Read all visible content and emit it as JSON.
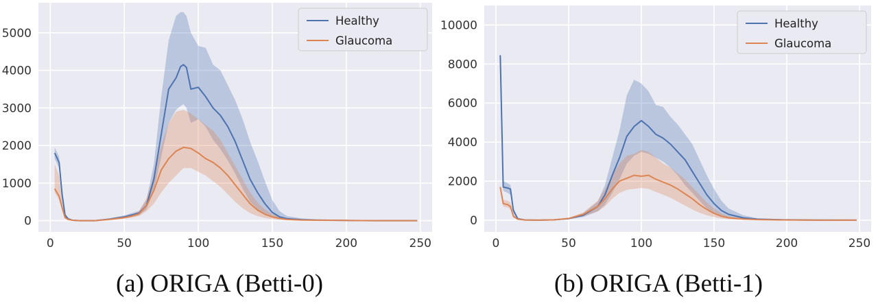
{
  "colors": {
    "healthy": "#4c72b0",
    "glaucoma": "#dd8452",
    "background": "#eaeaf2",
    "grid": "#ffffff"
  },
  "chart_data": [
    {
      "type": "line",
      "caption": "(a) ORIGA (Betti-0)",
      "xlim": [
        -8,
        258
      ],
      "ylim": [
        -300,
        5800
      ],
      "xticks": [
        0,
        50,
        100,
        150,
        200,
        250
      ],
      "yticks": [
        0,
        1000,
        2000,
        3000,
        4000,
        5000
      ],
      "legend_position": "upper right",
      "grid": true,
      "series": [
        {
          "name": "Healthy",
          "color": "#4c72b0",
          "x": [
            3,
            6,
            8,
            10,
            12,
            15,
            20,
            30,
            40,
            50,
            55,
            60,
            65,
            70,
            75,
            80,
            85,
            88,
            90,
            92,
            95,
            100,
            105,
            110,
            115,
            120,
            125,
            130,
            135,
            140,
            145,
            150,
            155,
            160,
            170,
            180,
            200,
            220,
            248
          ],
          "y": [
            1800,
            1550,
            700,
            150,
            50,
            10,
            0,
            0,
            40,
            100,
            150,
            200,
            400,
            1100,
            2300,
            3500,
            3800,
            4100,
            4150,
            4080,
            3500,
            3550,
            3300,
            3000,
            2800,
            2500,
            2100,
            1600,
            1100,
            750,
            450,
            220,
            100,
            50,
            25,
            15,
            5,
            0,
            0
          ],
          "lower": [
            1650,
            1400,
            550,
            100,
            30,
            5,
            0,
            0,
            20,
            60,
            100,
            150,
            300,
            800,
            1700,
            2600,
            2950,
            3050,
            3100,
            3000,
            2600,
            2700,
            2500,
            2150,
            1900,
            1600,
            1250,
            850,
            500,
            300,
            150,
            80,
            40,
            20,
            10,
            5,
            0,
            0,
            0
          ],
          "upper": [
            1950,
            1700,
            850,
            200,
            70,
            15,
            0,
            0,
            60,
            140,
            200,
            260,
            550,
            1500,
            3300,
            4800,
            5450,
            5550,
            5550,
            5450,
            5000,
            4650,
            4600,
            4150,
            4000,
            3600,
            3200,
            2700,
            2100,
            1600,
            1050,
            550,
            250,
            120,
            60,
            30,
            10,
            0,
            0
          ]
        },
        {
          "name": "Glaucoma",
          "color": "#dd8452",
          "x": [
            3,
            6,
            8,
            10,
            12,
            15,
            20,
            30,
            40,
            50,
            55,
            60,
            65,
            70,
            75,
            80,
            85,
            90,
            95,
            100,
            105,
            110,
            115,
            120,
            125,
            130,
            135,
            140,
            145,
            150,
            155,
            160,
            170,
            180,
            200,
            220,
            248
          ],
          "y": [
            850,
            650,
            350,
            80,
            30,
            10,
            0,
            0,
            30,
            80,
            120,
            180,
            400,
            800,
            1350,
            1650,
            1850,
            1950,
            1920,
            1800,
            1650,
            1550,
            1400,
            1200,
            950,
            700,
            450,
            280,
            170,
            100,
            60,
            30,
            15,
            10,
            5,
            0,
            0
          ],
          "lower": [
            750,
            550,
            280,
            60,
            20,
            5,
            0,
            0,
            20,
            50,
            80,
            120,
            250,
            450,
            750,
            1000,
            1200,
            1400,
            1400,
            1300,
            1200,
            1050,
            900,
            700,
            500,
            330,
            200,
            120,
            70,
            40,
            20,
            10,
            5,
            0,
            0,
            0,
            0
          ],
          "upper": [
            1500,
            1200,
            500,
            110,
            40,
            15,
            0,
            0,
            40,
            110,
            160,
            250,
            600,
            1200,
            2000,
            2600,
            2900,
            2950,
            2850,
            2700,
            2550,
            2400,
            2150,
            1800,
            1450,
            1100,
            750,
            480,
            300,
            180,
            110,
            60,
            30,
            15,
            5,
            0,
            0
          ]
        }
      ]
    },
    {
      "type": "line",
      "caption": "(b) ORIGA (Betti-1)",
      "xlim": [
        -8,
        258
      ],
      "ylim": [
        -600,
        11000
      ],
      "xticks": [
        0,
        50,
        100,
        150,
        200,
        250
      ],
      "yticks": [
        0,
        2000,
        4000,
        6000,
        8000,
        10000
      ],
      "legend_position": "upper right",
      "grid": true,
      "series": [
        {
          "name": "Healthy",
          "color": "#4c72b0",
          "x": [
            3,
            5,
            8,
            10,
            12,
            15,
            20,
            30,
            40,
            50,
            60,
            70,
            75,
            80,
            85,
            90,
            95,
            100,
            105,
            110,
            115,
            120,
            125,
            130,
            135,
            140,
            145,
            150,
            155,
            160,
            170,
            180,
            200,
            220,
            248
          ],
          "y": [
            8450,
            1700,
            1650,
            1600,
            500,
            80,
            10,
            0,
            20,
            80,
            250,
            700,
            1300,
            2300,
            3200,
            4300,
            4800,
            5100,
            4800,
            4400,
            4200,
            3900,
            3500,
            3100,
            2500,
            1900,
            1300,
            850,
            500,
            300,
            120,
            50,
            20,
            5,
            0
          ],
          "lower": [
            8300,
            1500,
            1400,
            1300,
            350,
            50,
            5,
            0,
            10,
            50,
            160,
            450,
            800,
            1400,
            2100,
            2900,
            3300,
            3500,
            3400,
            3200,
            3000,
            2700,
            2300,
            1800,
            1400,
            1000,
            600,
            350,
            200,
            100,
            40,
            15,
            5,
            0,
            0
          ],
          "upper": [
            8600,
            2000,
            1900,
            1800,
            650,
            110,
            15,
            0,
            30,
            110,
            350,
            950,
            1800,
            3200,
            4600,
            6400,
            7200,
            7000,
            6600,
            5900,
            5800,
            5300,
            4900,
            4400,
            3900,
            3100,
            2300,
            1600,
            1000,
            600,
            250,
            100,
            40,
            10,
            0
          ]
        },
        {
          "name": "Glaucoma",
          "color": "#dd8452",
          "x": [
            3,
            5,
            8,
            10,
            12,
            15,
            20,
            30,
            40,
            50,
            60,
            70,
            75,
            80,
            85,
            90,
            95,
            100,
            105,
            110,
            115,
            120,
            125,
            130,
            135,
            140,
            145,
            150,
            155,
            160,
            170,
            180,
            200,
            220,
            248
          ],
          "y": [
            1700,
            850,
            800,
            700,
            200,
            50,
            10,
            0,
            20,
            90,
            300,
            700,
            1100,
            1600,
            2000,
            2150,
            2300,
            2250,
            2300,
            2100,
            1950,
            1800,
            1600,
            1350,
            1100,
            800,
            550,
            350,
            200,
            120,
            60,
            30,
            10,
            0,
            0
          ],
          "lower": [
            1600,
            700,
            650,
            550,
            130,
            30,
            5,
            0,
            10,
            60,
            200,
            450,
            700,
            1100,
            1400,
            1550,
            1600,
            1650,
            1600,
            1450,
            1300,
            1150,
            950,
            750,
            550,
            380,
            250,
            160,
            90,
            50,
            25,
            10,
            5,
            0,
            0
          ],
          "upper": [
            1800,
            1050,
            1000,
            900,
            300,
            70,
            15,
            0,
            30,
            120,
            400,
            1000,
            1600,
            2300,
            2900,
            3300,
            3400,
            3600,
            3500,
            3200,
            2900,
            2700,
            2400,
            2100,
            1700,
            1300,
            900,
            600,
            350,
            200,
            100,
            50,
            20,
            0,
            0
          ]
        }
      ]
    }
  ]
}
